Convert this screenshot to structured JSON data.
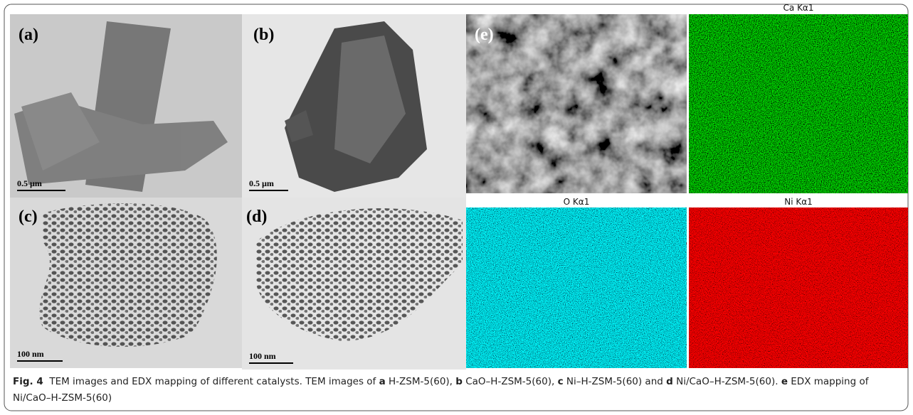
{
  "panels": [
    {
      "label": "(a)",
      "scale_bar": "0.5 µm"
    },
    {
      "label": "(b)",
      "scale_bar": "0.5 µm"
    },
    {
      "label": "(c)",
      "scale_bar": "100 nm"
    },
    {
      "label": "(d)",
      "scale_bar": "100 nm"
    },
    {
      "label": "(e)"
    }
  ],
  "maps": [
    {
      "label": "Ca Kα1"
    },
    {
      "label": "O Kα1"
    },
    {
      "label": "Ni Kα1"
    }
  ],
  "caption": {
    "label": "Fig. 4",
    "segments": [
      {
        "text": "TEM images and EDX mapping of different catalysts. TEM images of",
        "bold": false
      },
      {
        "text": "a",
        "bold": true
      },
      {
        "text": "H-ZSM-5(60),",
        "bold": false
      },
      {
        "text": "b",
        "bold": true
      },
      {
        "text": "CaO–H-ZSM-5(60),",
        "bold": false
      },
      {
        "text": "c",
        "bold": true
      },
      {
        "text": "Ni–H-ZSM-5(60) and",
        "bold": false
      },
      {
        "text": "d",
        "bold": true
      },
      {
        "text": "Ni/CaO–H-ZSM-5(60).",
        "bold": false
      },
      {
        "text": "e",
        "bold": true
      },
      {
        "text": "EDX mapping of Ni/CaO–H-ZSM-5(60)",
        "bold": false
      }
    ]
  }
}
